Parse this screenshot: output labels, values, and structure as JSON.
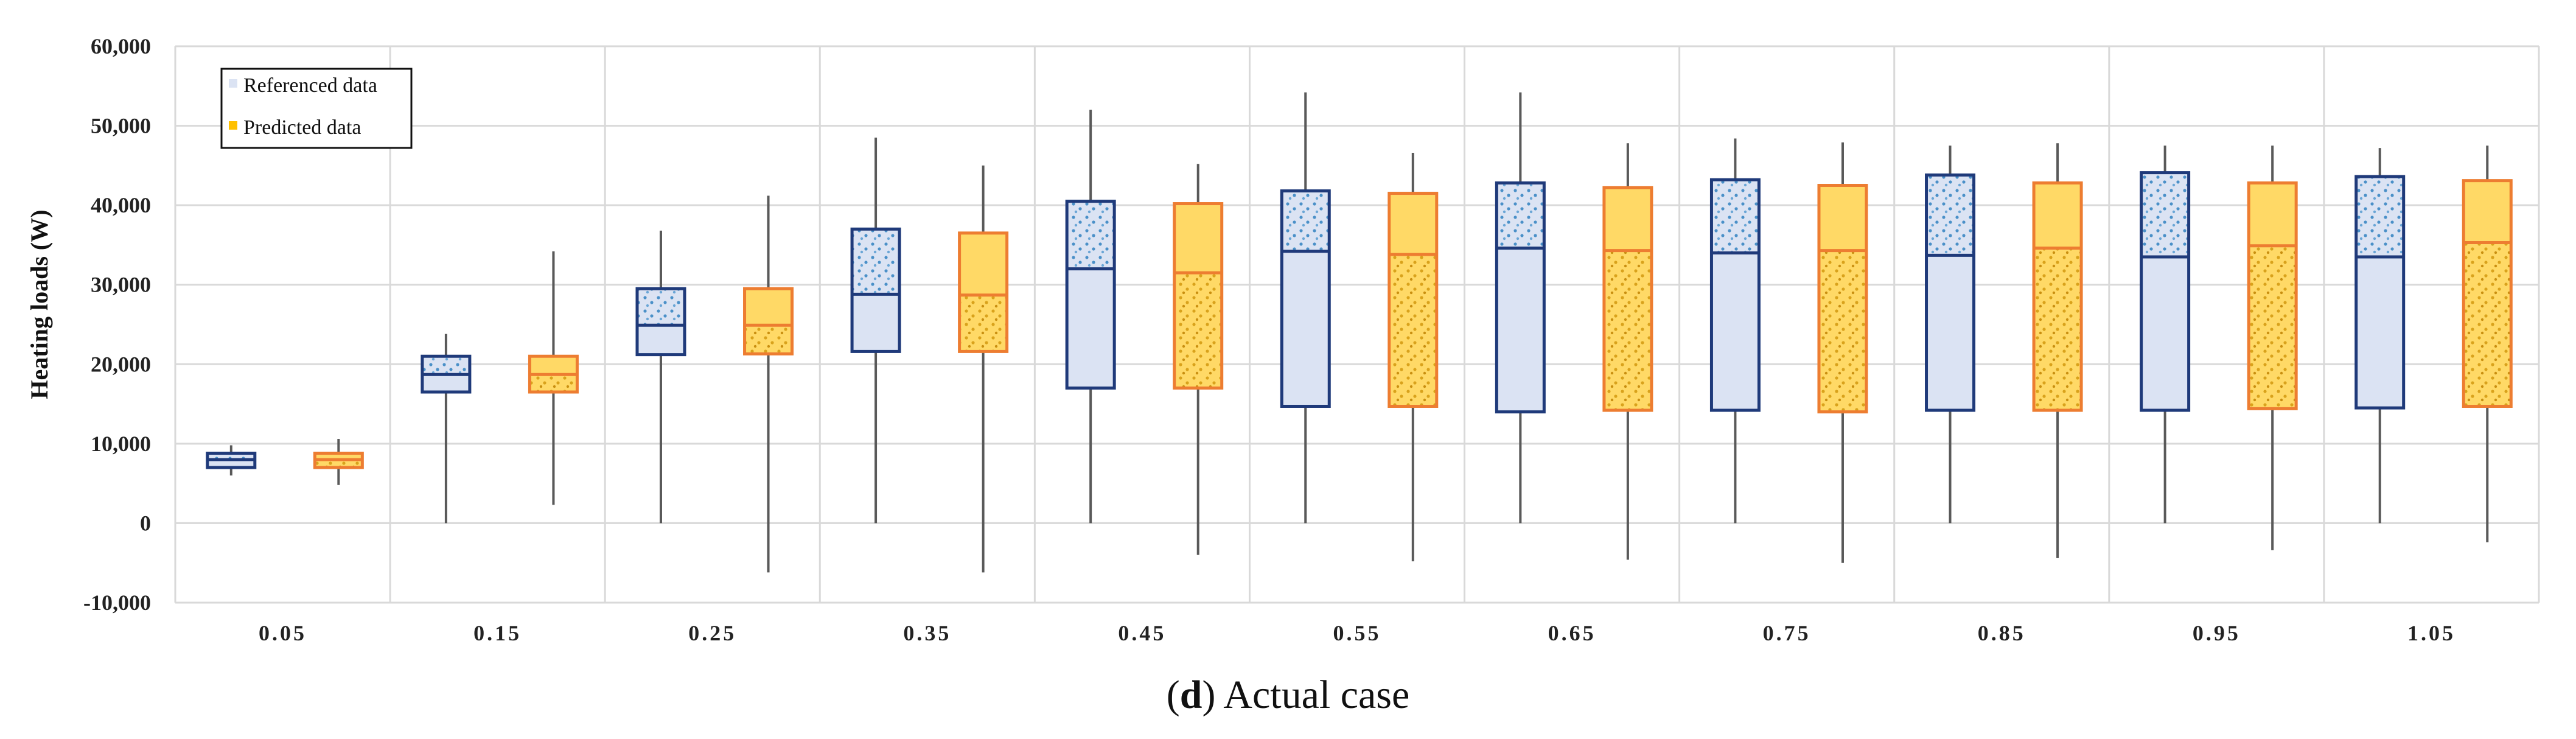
{
  "chart_data": {
    "type": "boxplot",
    "ylabel": "Heating loads (W)",
    "xlabel": "",
    "ylim": [
      -10000,
      60000
    ],
    "yticks": [
      -10000,
      0,
      10000,
      20000,
      30000,
      40000,
      50000,
      60000
    ],
    "ytick_labels": [
      "-10,000",
      "0",
      "10,000",
      "20,000",
      "30,000",
      "40,000",
      "50,000",
      "60,000"
    ],
    "categories": [
      "0.05",
      "0.15",
      "0.25",
      "0.35",
      "0.45",
      "0.55",
      "0.65",
      "0.75",
      "0.85",
      "0.95",
      "1.05"
    ],
    "grid": true,
    "legend": {
      "position": "top-left",
      "entries": [
        "Referenced data",
        "Predicted data"
      ]
    },
    "series": [
      {
        "name": "Referenced data",
        "color": "#1f3a7a",
        "fill": "#dbe3f3",
        "dot_color": "#4a90c8",
        "boxes": [
          {
            "min": 6000,
            "q1": 7000,
            "median": 8000,
            "q3": 8800,
            "max": 9800
          },
          {
            "min": 0,
            "q1": 16500,
            "median": 18700,
            "q3": 21000,
            "max": 23800
          },
          {
            "min": 0,
            "q1": 21200,
            "median": 24900,
            "q3": 29500,
            "max": 36800
          },
          {
            "min": 0,
            "q1": 21600,
            "median": 28800,
            "q3": 37000,
            "max": 48500
          },
          {
            "min": 0,
            "q1": 17000,
            "median": 32000,
            "q3": 40500,
            "max": 52000
          },
          {
            "min": 0,
            "q1": 14700,
            "median": 34200,
            "q3": 41800,
            "max": 54200
          },
          {
            "min": 0,
            "q1": 14000,
            "median": 34600,
            "q3": 42800,
            "max": 54200
          },
          {
            "min": 0,
            "q1": 14200,
            "median": 34000,
            "q3": 43200,
            "max": 48400
          },
          {
            "min": 0,
            "q1": 14200,
            "median": 33700,
            "q3": 43800,
            "max": 47500
          },
          {
            "min": 0,
            "q1": 14200,
            "median": 33500,
            "q3": 44100,
            "max": 47500
          },
          {
            "min": 0,
            "q1": 14500,
            "median": 33500,
            "q3": 43600,
            "max": 47200
          }
        ]
      },
      {
        "name": "Predicted data",
        "color": "#ed7d31",
        "fill": "#ffd966",
        "dot_color": "#d9a21b",
        "boxes": [
          {
            "min": 4800,
            "q1": 7000,
            "median": 8000,
            "q3": 8800,
            "max": 10600
          },
          {
            "min": 2300,
            "q1": 16500,
            "median": 18700,
            "q3": 21000,
            "max": 34200
          },
          {
            "min": -6200,
            "q1": 21300,
            "median": 24900,
            "q3": 29500,
            "max": 41200
          },
          {
            "min": -6200,
            "q1": 21600,
            "median": 28700,
            "q3": 36500,
            "max": 45000
          },
          {
            "min": -4000,
            "q1": 17000,
            "median": 31500,
            "q3": 40200,
            "max": 45200
          },
          {
            "min": -4800,
            "q1": 14700,
            "median": 33800,
            "q3": 41500,
            "max": 46600
          },
          {
            "min": -4600,
            "q1": 14200,
            "median": 34300,
            "q3": 42200,
            "max": 47800
          },
          {
            "min": -5000,
            "q1": 14000,
            "median": 34300,
            "q3": 42500,
            "max": 47900
          },
          {
            "min": -4400,
            "q1": 14200,
            "median": 34600,
            "q3": 42800,
            "max": 47800
          },
          {
            "min": -3400,
            "q1": 14400,
            "median": 34900,
            "q3": 42800,
            "max": 47500
          },
          {
            "min": -2400,
            "q1": 14700,
            "median": 35300,
            "q3": 43100,
            "max": 47500
          }
        ]
      }
    ]
  },
  "caption": {
    "letter": "d",
    "text": ") Actual case",
    "open_paren": "("
  }
}
